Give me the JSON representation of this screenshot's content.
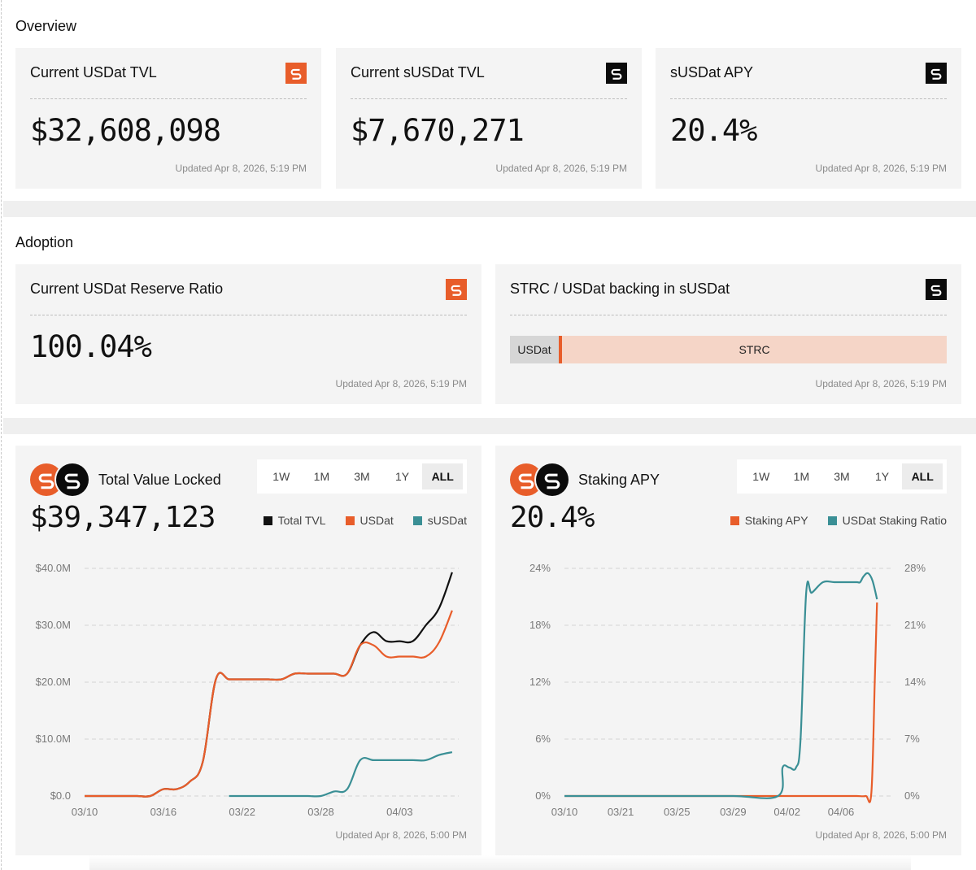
{
  "overview": {
    "title": "Overview",
    "cards": [
      {
        "title": "Current USDat TVL",
        "value": "$32,608,098",
        "updated": "Updated Apr 8, 2026, 5:19 PM",
        "icon": "usdat-logo-icon"
      },
      {
        "title": "Current sUSDat TVL",
        "value": "$7,670,271",
        "updated": "Updated Apr 8, 2026, 5:19 PM",
        "icon": "susdat-logo-icon"
      },
      {
        "title": "sUSDat APY",
        "value": "20.4%",
        "updated": "Updated Apr 8, 2026, 5:19 PM",
        "icon": "susdat-logo-icon"
      }
    ]
  },
  "adoption": {
    "title": "Adoption",
    "reserve": {
      "title": "Current USDat Reserve Ratio",
      "value": "100.04%",
      "updated": "Updated Apr 8, 2026, 5:19 PM"
    },
    "backing": {
      "title": "STRC / USDat backing in sUSDat",
      "usdat_label": "USDat",
      "strc_label": "STRC",
      "updated": "Updated Apr 8, 2026, 5:19 PM"
    }
  },
  "timeframes": [
    "1W",
    "1M",
    "3M",
    "1Y",
    "ALL"
  ],
  "active_timeframe": "ALL",
  "colors": {
    "usdat": "#e85d2a",
    "total": "#111111",
    "susdat": "#3a8f95",
    "ratio": "#3a8f95"
  },
  "tvl_chart": {
    "title": "Total Value Locked",
    "value": "$39,347,123",
    "updated": "Updated Apr 8, 2026, 5:00 PM",
    "legend": [
      "Total TVL",
      "USDat",
      "sUSDat"
    ]
  },
  "apy_chart": {
    "title": "Staking APY",
    "value": "20.4%",
    "updated": "Updated Apr 8, 2026, 5:00 PM",
    "legend": [
      "Staking APY",
      "USDat Staking Ratio"
    ]
  },
  "chart_data": [
    {
      "type": "line",
      "title": "Total Value Locked",
      "x_ticks": [
        "03/10",
        "03/16",
        "03/22",
        "03/28",
        "04/03"
      ],
      "y_ticks": [
        "$0.0",
        "$10.0M",
        "$20.0M",
        "$30.0M",
        "$40.0M"
      ],
      "ylim": [
        0,
        40
      ],
      "unit": "$M",
      "grid": true,
      "legend_position": "top-right",
      "series": [
        {
          "name": "Total TVL",
          "x": [
            10,
            11,
            12,
            13,
            14,
            15,
            16,
            17,
            18,
            19,
            20,
            21,
            22,
            23,
            24,
            25,
            26,
            27,
            28,
            29,
            30,
            31,
            32,
            33,
            34,
            35,
            36,
            37,
            38
          ],
          "values": [
            0,
            0,
            0,
            0,
            0,
            0,
            1.2,
            1.2,
            2.5,
            6,
            20.5,
            20.5,
            20.5,
            20.5,
            20.5,
            20.5,
            21.5,
            21.5,
            21.5,
            21.5,
            21.5,
            26.5,
            28.8,
            27.2,
            27.2,
            27.2,
            30,
            33,
            39.3
          ]
        },
        {
          "name": "USDat",
          "x": [
            10,
            11,
            12,
            13,
            14,
            15,
            16,
            17,
            18,
            19,
            20,
            21,
            22,
            23,
            24,
            25,
            26,
            27,
            28,
            29,
            30,
            31,
            32,
            33,
            34,
            35,
            36,
            37,
            38
          ],
          "values": [
            0,
            0,
            0,
            0,
            0,
            0,
            1.2,
            1.2,
            2.5,
            6,
            20.5,
            20.5,
            20.5,
            20.5,
            20.5,
            20.5,
            21.5,
            21.5,
            21.5,
            21.5,
            21.5,
            26.5,
            26.5,
            24.5,
            24.5,
            24.5,
            24.5,
            27,
            32.6
          ]
        },
        {
          "name": "sUSDat",
          "x": [
            21,
            22,
            23,
            24,
            25,
            26,
            27,
            28,
            29,
            30,
            31,
            32,
            33,
            34,
            35,
            36,
            37,
            38
          ],
          "values": [
            0,
            0,
            0,
            0,
            0,
            0,
            0,
            0,
            0.8,
            1.2,
            6.3,
            6.3,
            6.3,
            6.3,
            6.3,
            6.3,
            7.2,
            7.7
          ]
        }
      ]
    },
    {
      "type": "line",
      "title": "Staking APY",
      "x_ticks": [
        "03/10",
        "03/21",
        "03/25",
        "03/29",
        "04/02",
        "04/06"
      ],
      "y_ticks_left": [
        "0%",
        "6%",
        "12%",
        "18%",
        "24%"
      ],
      "y_ticks_right": [
        "0%",
        "7%",
        "14%",
        "21%",
        "28%"
      ],
      "ylim_left": [
        0,
        24
      ],
      "ylim_right": [
        0,
        28
      ],
      "grid": true,
      "legend_position": "top-right",
      "series": [
        {
          "name": "Staking APY",
          "axis": "left",
          "x": [
            10,
            15,
            20,
            25,
            29,
            33,
            35,
            36,
            36.8,
            37.3,
            37.6,
            37.8
          ],
          "values": [
            0,
            0,
            0,
            0,
            0,
            0,
            0,
            0,
            0,
            0.4,
            12,
            20.4
          ]
        },
        {
          "name": "USDat Staking Ratio",
          "axis": "right",
          "x": [
            10,
            15,
            20,
            25,
            29,
            29.4,
            30,
            30.6,
            31,
            31.5,
            32,
            33,
            34,
            35,
            36,
            36.3,
            36.6,
            37,
            37.4,
            37.8
          ],
          "values": [
            0,
            0,
            0,
            0,
            0,
            3.5,
            3.5,
            3.5,
            7,
            25,
            25,
            26.3,
            26.3,
            26.3,
            26.3,
            26.3,
            27,
            27.4,
            26.5,
            24.2
          ]
        }
      ]
    }
  ]
}
